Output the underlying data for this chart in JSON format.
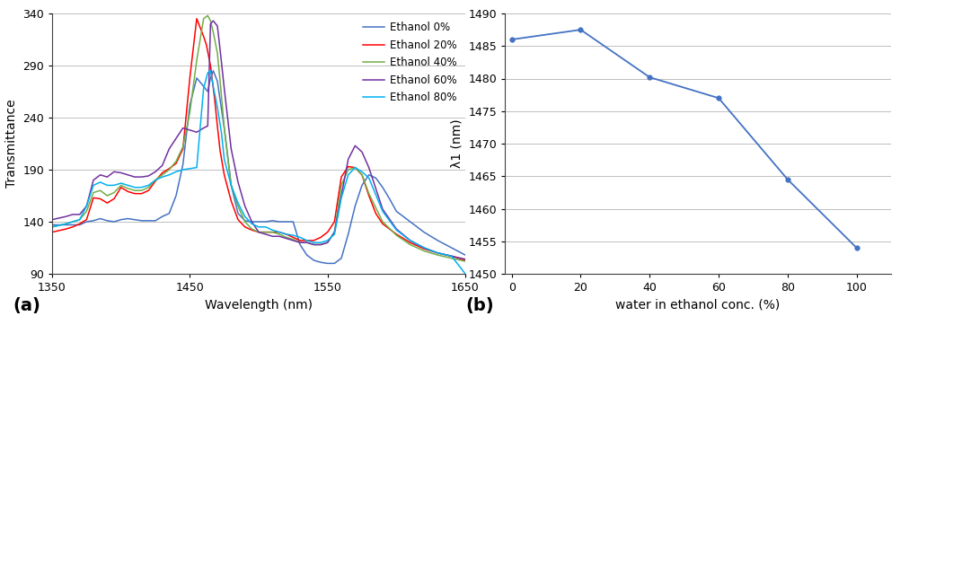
{
  "panel_a": {
    "xlabel": "Wavelength (nm)",
    "ylabel": "Transmittance",
    "xlim": [
      1350,
      1650
    ],
    "ylim": [
      90,
      340
    ],
    "yticks": [
      90,
      140,
      190,
      240,
      290,
      340
    ],
    "xticks": [
      1350,
      1450,
      1550,
      1650
    ],
    "label_a": "(a)",
    "series": [
      {
        "label": "Ethanol 0%",
        "color": "#4472C4",
        "x": [
          1350,
          1360,
          1370,
          1375,
          1380,
          1385,
          1390,
          1395,
          1400,
          1405,
          1410,
          1415,
          1420,
          1425,
          1430,
          1435,
          1440,
          1445,
          1450,
          1455,
          1460,
          1463,
          1465,
          1467,
          1470,
          1475,
          1480,
          1485,
          1490,
          1495,
          1500,
          1505,
          1510,
          1515,
          1520,
          1525,
          1530,
          1535,
          1540,
          1545,
          1550,
          1555,
          1560,
          1565,
          1570,
          1575,
          1580,
          1585,
          1590,
          1595,
          1600,
          1610,
          1620,
          1630,
          1640,
          1650
        ],
        "y": [
          137,
          137,
          137,
          140,
          141,
          143,
          141,
          140,
          142,
          143,
          142,
          141,
          141,
          141,
          145,
          148,
          165,
          195,
          252,
          278,
          270,
          265,
          278,
          285,
          275,
          230,
          175,
          148,
          141,
          140,
          140,
          140,
          141,
          140,
          140,
          140,
          118,
          108,
          103,
          101,
          100,
          100,
          105,
          128,
          155,
          175,
          185,
          182,
          173,
          162,
          150,
          140,
          130,
          122,
          115,
          108
        ]
      },
      {
        "label": "Ethanol 20%",
        "color": "#FF0000",
        "x": [
          1350,
          1360,
          1365,
          1370,
          1375,
          1380,
          1385,
          1390,
          1395,
          1400,
          1405,
          1410,
          1415,
          1420,
          1425,
          1430,
          1435,
          1440,
          1445,
          1450,
          1455,
          1460,
          1462,
          1465,
          1468,
          1470,
          1472,
          1475,
          1480,
          1485,
          1490,
          1495,
          1500,
          1505,
          1510,
          1515,
          1520,
          1525,
          1530,
          1535,
          1540,
          1545,
          1550,
          1555,
          1560,
          1565,
          1570,
          1575,
          1580,
          1585,
          1590,
          1600,
          1610,
          1620,
          1630,
          1640,
          1650
        ],
        "y": [
          130,
          133,
          135,
          138,
          142,
          163,
          162,
          158,
          162,
          173,
          169,
          167,
          167,
          170,
          179,
          187,
          191,
          196,
          210,
          278,
          335,
          318,
          310,
          290,
          258,
          232,
          208,
          185,
          160,
          142,
          135,
          132,
          130,
          130,
          130,
          130,
          128,
          125,
          122,
          122,
          122,
          125,
          130,
          140,
          183,
          193,
          192,
          185,
          165,
          148,
          138,
          128,
          120,
          114,
          110,
          107,
          103
        ]
      },
      {
        "label": "Ethanol 40%",
        "color": "#70AD47",
        "x": [
          1350,
          1360,
          1365,
          1370,
          1375,
          1380,
          1385,
          1390,
          1395,
          1400,
          1405,
          1410,
          1415,
          1420,
          1425,
          1430,
          1435,
          1440,
          1445,
          1450,
          1455,
          1460,
          1463,
          1465,
          1467,
          1470,
          1472,
          1475,
          1480,
          1485,
          1490,
          1495,
          1500,
          1505,
          1510,
          1515,
          1520,
          1525,
          1530,
          1535,
          1540,
          1545,
          1550,
          1555,
          1560,
          1565,
          1570,
          1575,
          1580,
          1590,
          1600,
          1610,
          1620,
          1630,
          1640,
          1650
        ],
        "y": [
          135,
          138,
          140,
          142,
          150,
          168,
          170,
          165,
          168,
          175,
          172,
          170,
          170,
          173,
          180,
          185,
          190,
          198,
          212,
          245,
          295,
          335,
          338,
          333,
          322,
          302,
          275,
          230,
          175,
          155,
          140,
          133,
          130,
          130,
          130,
          128,
          125,
          123,
          120,
          120,
          118,
          118,
          120,
          130,
          175,
          190,
          192,
          185,
          167,
          140,
          127,
          118,
          112,
          108,
          105,
          102
        ]
      },
      {
        "label": "Ethanol 60%",
        "color": "#7030A0",
        "x": [
          1350,
          1360,
          1365,
          1370,
          1375,
          1380,
          1385,
          1390,
          1395,
          1400,
          1405,
          1410,
          1415,
          1420,
          1425,
          1430,
          1435,
          1440,
          1445,
          1450,
          1455,
          1460,
          1463,
          1465,
          1467,
          1470,
          1472,
          1475,
          1480,
          1485,
          1490,
          1495,
          1500,
          1505,
          1510,
          1515,
          1520,
          1525,
          1530,
          1535,
          1540,
          1545,
          1550,
          1555,
          1560,
          1565,
          1570,
          1575,
          1580,
          1590,
          1600,
          1610,
          1620,
          1630,
          1640,
          1650
        ],
        "y": [
          142,
          145,
          147,
          147,
          155,
          180,
          185,
          183,
          188,
          187,
          185,
          183,
          183,
          184,
          188,
          194,
          210,
          220,
          230,
          228,
          226,
          230,
          232,
          330,
          333,
          328,
          305,
          268,
          210,
          178,
          155,
          140,
          130,
          128,
          126,
          126,
          124,
          122,
          120,
          120,
          118,
          118,
          120,
          130,
          165,
          200,
          213,
          207,
          192,
          152,
          133,
          122,
          115,
          110,
          107,
          104
        ]
      },
      {
        "label": "Ethanol 80%",
        "color": "#00B0F0",
        "x": [
          1350,
          1360,
          1365,
          1370,
          1375,
          1380,
          1385,
          1390,
          1395,
          1400,
          1405,
          1410,
          1415,
          1420,
          1425,
          1430,
          1435,
          1440,
          1445,
          1450,
          1455,
          1460,
          1463,
          1465,
          1467,
          1470,
          1473,
          1475,
          1480,
          1485,
          1490,
          1495,
          1500,
          1505,
          1510,
          1515,
          1520,
          1525,
          1530,
          1535,
          1540,
          1545,
          1550,
          1555,
          1560,
          1565,
          1570,
          1575,
          1580,
          1590,
          1600,
          1610,
          1620,
          1630,
          1640,
          1650
        ],
        "y": [
          135,
          138,
          140,
          142,
          155,
          175,
          178,
          175,
          175,
          177,
          175,
          173,
          173,
          175,
          180,
          183,
          185,
          188,
          190,
          191,
          192,
          268,
          283,
          285,
          270,
          250,
          225,
          200,
          175,
          158,
          145,
          138,
          135,
          135,
          132,
          130,
          128,
          127,
          125,
          122,
          120,
          120,
          122,
          128,
          163,
          185,
          192,
          188,
          182,
          150,
          132,
          122,
          115,
          110,
          107,
          90
        ]
      }
    ]
  },
  "panel_b": {
    "xlabel": "water in ethanol conc. (%)",
    "ylabel": "λ1 (nm)",
    "xlim": [
      -2,
      110
    ],
    "ylim": [
      1450,
      1490
    ],
    "yticks": [
      1450,
      1455,
      1460,
      1465,
      1470,
      1475,
      1480,
      1485,
      1490
    ],
    "xticks": [
      0,
      20,
      40,
      60,
      80,
      100
    ],
    "label_b": "(b)",
    "color": "#4472C4",
    "x": [
      0,
      20,
      40,
      60,
      80,
      100
    ],
    "y": [
      1486.0,
      1487.5,
      1480.2,
      1477.0,
      1464.5,
      1454.0
    ]
  },
  "bg_color": "#FFFFFF",
  "grid_color": "#BFBFBF",
  "fig_width": 10.81,
  "fig_height": 6.55,
  "fig_dpi": 100
}
